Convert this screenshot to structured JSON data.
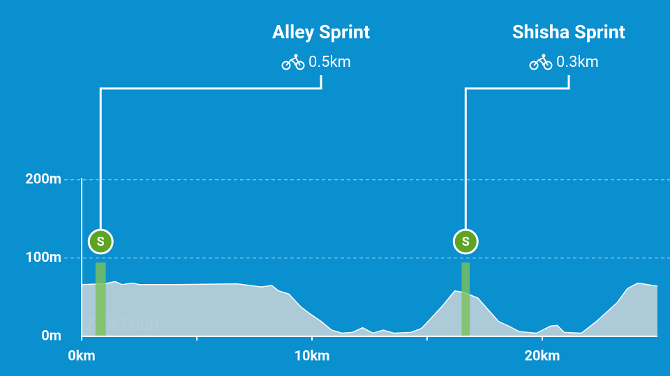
{
  "chart_data": {
    "type": "area",
    "x": [
      0,
      1.0,
      1.45,
      1.75,
      2.2,
      2.5,
      4.0,
      6.75,
      7.8,
      8.25,
      8.55,
      9.0,
      9.5,
      9.9,
      10.4,
      10.85,
      11.3,
      11.75,
      12.2,
      12.65,
      13.1,
      13.55,
      14.3,
      14.75,
      15.2,
      15.7,
      16.2,
      16.6,
      17.2,
      17.65,
      18.1,
      18.55,
      19.0,
      19.75,
      20.35,
      20.65,
      20.95,
      21.7,
      22.35,
      22.8,
      23.25,
      23.7,
      24.15,
      25.0
    ],
    "values": [
      66,
      67,
      70,
      66,
      68,
      66,
      66,
      67,
      63,
      65,
      58,
      54,
      38,
      29,
      19,
      8,
      4,
      5,
      11,
      4,
      8,
      4,
      5,
      10,
      24,
      40,
      58,
      56,
      49,
      34,
      19,
      13,
      6,
      4,
      13,
      14,
      5,
      4,
      19,
      31,
      43,
      61,
      68,
      64
    ],
    "color": "#b5cdd8",
    "xlim": [
      0,
      25
    ],
    "ylim": [
      0,
      200
    ],
    "xticks": [
      {
        "value": 0,
        "label": "0km"
      },
      {
        "value": 10,
        "label": "10km"
      },
      {
        "value": 20,
        "label": "20km"
      }
    ],
    "xminorticks": [
      5,
      15
    ],
    "yticks": [
      {
        "value": 0,
        "label": "0m"
      },
      {
        "value": 100,
        "label": "100m"
      },
      {
        "value": 200,
        "label": "200m"
      }
    ],
    "grid": true,
    "segment_marker": "S",
    "segment_color": "#7cc05a",
    "segments": [
      {
        "name": "Alley Sprint",
        "distance": "0.5km",
        "start": 0.6,
        "end": 1.05
      },
      {
        "name": "Shisha Sprint",
        "distance": "0.3km",
        "start": 16.5,
        "end": 16.85
      }
    ],
    "watermark": {
      "left": "ZWIFT",
      "right": "HUB"
    }
  }
}
